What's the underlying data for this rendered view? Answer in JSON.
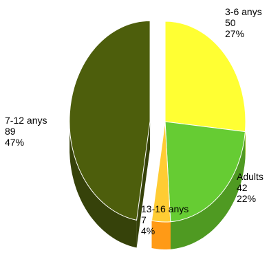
{
  "chart_data": {
    "type": "pie",
    "categories": [
      "3-6 anys",
      "Adults",
      "13-16 anys",
      "7-12 anys"
    ],
    "values": [
      50,
      42,
      7,
      89
    ],
    "percents": [
      "27%",
      "22%",
      "4%",
      "47%"
    ],
    "colors": [
      "#ffff33",
      "#66cc33",
      "#ffcc33",
      "#4d5e0c"
    ],
    "side_colors": [
      "#d4d424",
      "#4f9a22",
      "#ff9a16",
      "#36420a"
    ],
    "exploded_slices": [
      "7-12 anys"
    ],
    "style": "3d-exploded",
    "legend": "none"
  }
}
